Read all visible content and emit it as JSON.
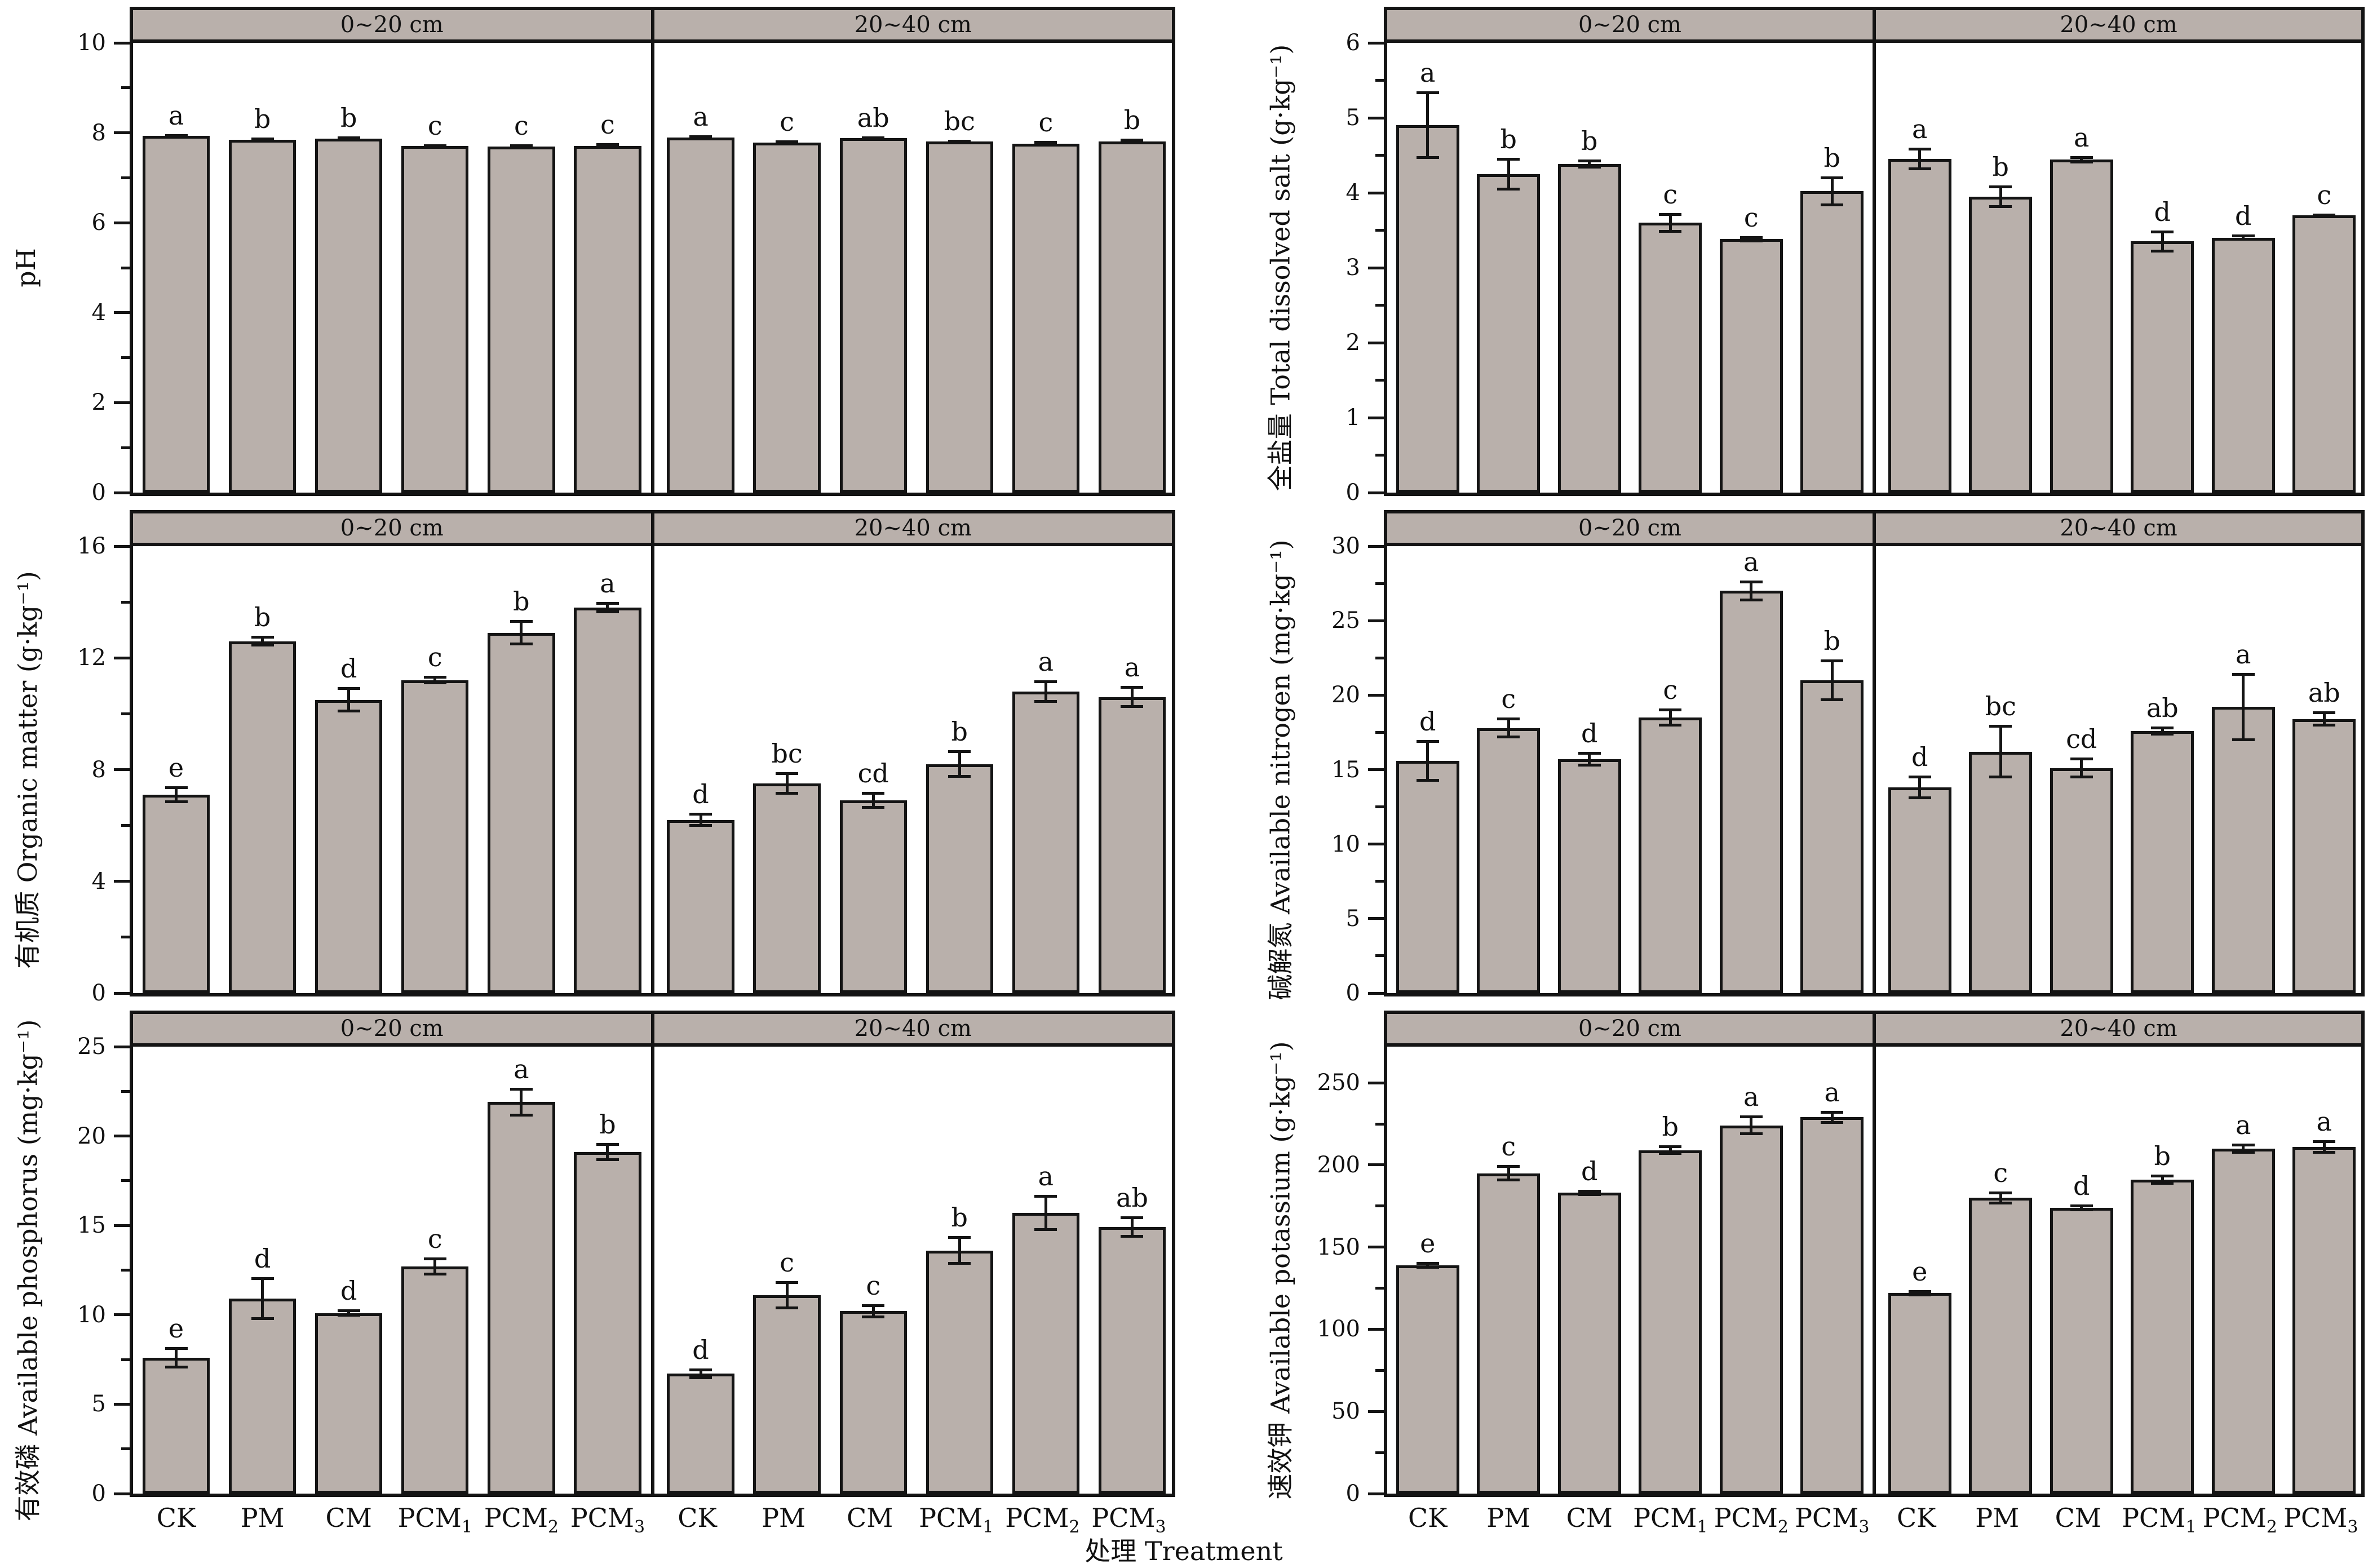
{
  "figure": {
    "x_axis_title": "处理 Treatment",
    "categories": [
      "CK",
      "PM",
      "CM",
      "PCM_1",
      "PCM_2",
      "PCM_3"
    ],
    "section_labels": [
      "0~20 cm",
      "20~40 cm"
    ],
    "colors": {
      "bar_fill": "#b9b0ab",
      "border": "#141414",
      "background": "#ffffff"
    }
  },
  "chart_data": [
    {
      "type": "bar",
      "id": "ph",
      "ylabel": "pH",
      "axis_top": 10,
      "yticks": [
        0,
        2,
        4,
        6,
        8,
        10
      ],
      "minor_step": 1,
      "show_x_labels": false,
      "sections": [
        {
          "depth": "0~20 cm",
          "values": [
            7.93,
            7.84,
            7.87,
            7.71,
            7.7,
            7.71
          ],
          "errors": [
            0.04,
            0.05,
            0.05,
            0.04,
            0.03,
            0.06
          ],
          "letters": [
            "a",
            "b",
            "b",
            "c",
            "c",
            "c"
          ]
        },
        {
          "depth": "20~40 cm",
          "values": [
            7.9,
            7.78,
            7.88,
            7.81,
            7.76,
            7.81
          ],
          "errors": [
            0.03,
            0.05,
            0.04,
            0.04,
            0.06,
            0.06
          ],
          "letters": [
            "a",
            "c",
            "ab",
            "bc",
            "c",
            "b"
          ]
        }
      ]
    },
    {
      "type": "bar",
      "id": "total-dissolved-salt",
      "ylabel": "全盐量 Total dissolved salt (g·kg⁻¹)",
      "axis_top": 6,
      "yticks": [
        0,
        1,
        2,
        3,
        4,
        5,
        6
      ],
      "minor_step": 0.5,
      "show_x_labels": false,
      "sections": [
        {
          "depth": "0~20 cm",
          "values": [
            4.9,
            4.25,
            4.38,
            3.6,
            3.38,
            4.02
          ],
          "errors": [
            0.45,
            0.22,
            0.06,
            0.13,
            0.04,
            0.2
          ],
          "letters": [
            "a",
            "b",
            "b",
            "c",
            "c",
            "b"
          ]
        },
        {
          "depth": "20~40 cm",
          "values": [
            4.45,
            3.95,
            4.44,
            3.35,
            3.4,
            3.7
          ],
          "errors": [
            0.15,
            0.15,
            0.05,
            0.15,
            0.04,
            0.02
          ],
          "letters": [
            "a",
            "b",
            "a",
            "d",
            "d",
            "c"
          ]
        }
      ]
    },
    {
      "type": "bar",
      "id": "organic-matter",
      "ylabel": "有机质 Organic matter (g·kg⁻¹)",
      "axis_top": 16,
      "yticks": [
        0,
        4,
        8,
        12,
        16
      ],
      "minor_step": 2,
      "show_x_labels": false,
      "sections": [
        {
          "depth": "0~20 cm",
          "values": [
            7.1,
            12.6,
            10.5,
            11.2,
            12.9,
            13.8
          ],
          "errors": [
            0.3,
            0.2,
            0.45,
            0.15,
            0.45,
            0.2
          ],
          "letters": [
            "e",
            "b",
            "d",
            "c",
            "b",
            "a"
          ]
        },
        {
          "depth": "20~40 cm",
          "values": [
            6.2,
            7.5,
            6.9,
            8.2,
            10.8,
            10.6
          ],
          "errors": [
            0.25,
            0.4,
            0.3,
            0.5,
            0.4,
            0.4
          ],
          "letters": [
            "d",
            "bc",
            "cd",
            "b",
            "a",
            "a"
          ]
        }
      ]
    },
    {
      "type": "bar",
      "id": "available-nitrogen",
      "ylabel": "碱解氮 Available nitrogen (mg·kg⁻¹)",
      "axis_top": 30,
      "yticks": [
        0,
        5,
        10,
        15,
        20,
        25,
        30
      ],
      "minor_step": 2.5,
      "show_x_labels": false,
      "sections": [
        {
          "depth": "0~20 cm",
          "values": [
            15.6,
            17.8,
            15.7,
            18.5,
            27.0,
            21.0
          ],
          "errors": [
            1.4,
            0.7,
            0.5,
            0.6,
            0.7,
            1.4
          ],
          "letters": [
            "d",
            "c",
            "d",
            "c",
            "a",
            "b"
          ]
        },
        {
          "depth": "20~40 cm",
          "values": [
            13.8,
            16.2,
            15.1,
            17.6,
            19.2,
            18.4
          ],
          "errors": [
            0.8,
            1.8,
            0.7,
            0.3,
            2.3,
            0.5
          ],
          "letters": [
            "d",
            "bc",
            "cd",
            "ab",
            "a",
            "ab"
          ]
        }
      ]
    },
    {
      "type": "bar",
      "id": "available-phosphorus",
      "ylabel": "有效磷 Available phosphorus (mg·kg⁻¹)",
      "axis_top": 25,
      "yticks": [
        0,
        5,
        10,
        15,
        20,
        25
      ],
      "minor_step": 2.5,
      "show_x_labels": true,
      "sections": [
        {
          "depth": "0~20 cm",
          "values": [
            7.6,
            10.9,
            10.1,
            12.7,
            21.9,
            19.1
          ],
          "errors": [
            0.6,
            1.2,
            0.2,
            0.5,
            0.8,
            0.5
          ],
          "letters": [
            "e",
            "d",
            "d",
            "c",
            "a",
            "b"
          ]
        },
        {
          "depth": "20~40 cm",
          "values": [
            6.7,
            11.1,
            10.2,
            13.6,
            15.7,
            14.9
          ],
          "errors": [
            0.3,
            0.8,
            0.4,
            0.8,
            1.0,
            0.6
          ],
          "letters": [
            "d",
            "c",
            "c",
            "b",
            "a",
            "ab"
          ]
        }
      ]
    },
    {
      "type": "bar",
      "id": "available-potassium",
      "ylabel": "速效钾 Available potassium (g·kg⁻¹)",
      "axis_top": 272,
      "yticks": [
        0,
        50,
        100,
        150,
        200,
        250
      ],
      "minor_step": 25,
      "show_x_labels": true,
      "sections": [
        {
          "depth": "0~20 cm",
          "values": [
            139,
            195,
            183,
            209,
            224,
            229
          ],
          "errors": [
            2,
            5,
            2,
            3,
            6,
            4
          ],
          "letters": [
            "e",
            "c",
            "d",
            "b",
            "a",
            "a"
          ]
        },
        {
          "depth": "20~40 cm",
          "values": [
            122,
            180,
            174,
            191,
            210,
            211
          ],
          "errors": [
            2,
            4,
            2,
            3,
            3,
            4
          ],
          "letters": [
            "e",
            "c",
            "d",
            "b",
            "a",
            "a"
          ]
        }
      ]
    }
  ]
}
